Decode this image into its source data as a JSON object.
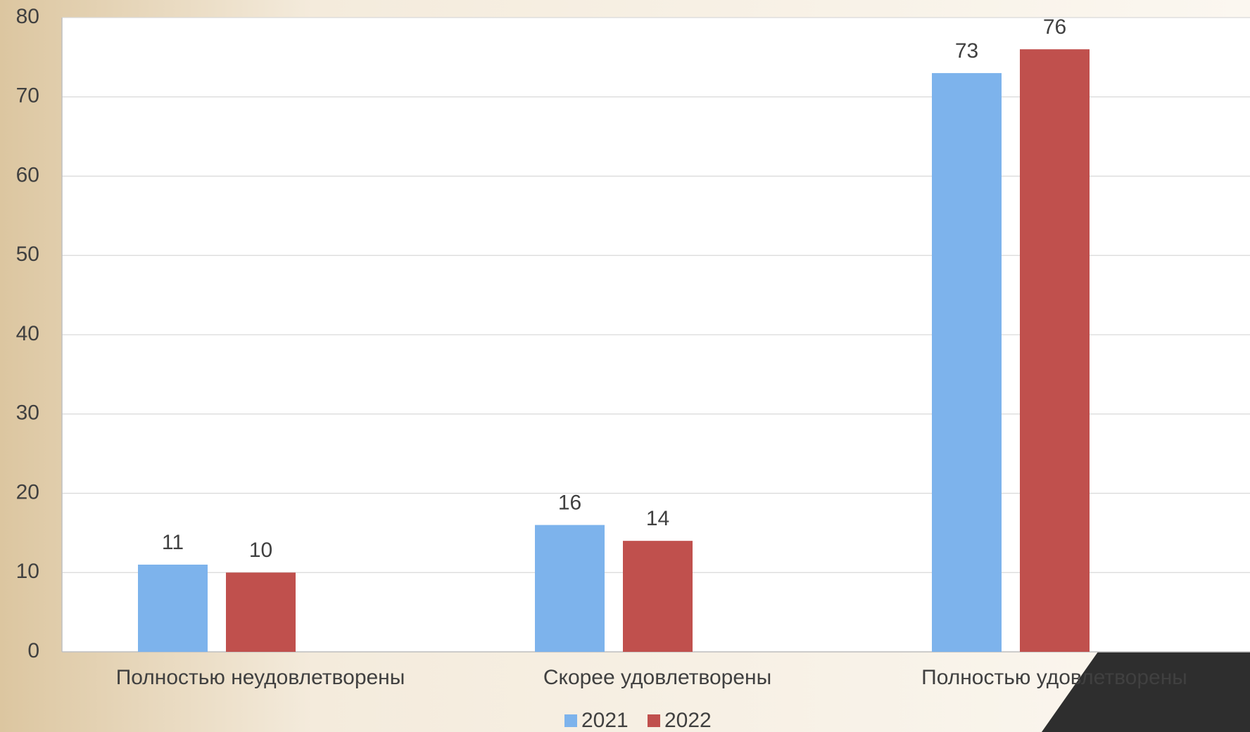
{
  "chart_data": {
    "type": "bar",
    "categories": [
      "Полностью неудовлетворены",
      "Скорее удовлетворены",
      "Полностью удовлетворены"
    ],
    "series": [
      {
        "name": "2021",
        "color": "#7db3ec",
        "values": [
          11,
          16,
          73
        ]
      },
      {
        "name": "2022",
        "color": "#c0504d",
        "values": [
          10,
          14,
          76
        ]
      }
    ],
    "ylim": [
      0,
      80
    ],
    "yticks": [
      0,
      10,
      20,
      30,
      40,
      50,
      60,
      70,
      80
    ],
    "grid": true,
    "legend": "bottom"
  }
}
